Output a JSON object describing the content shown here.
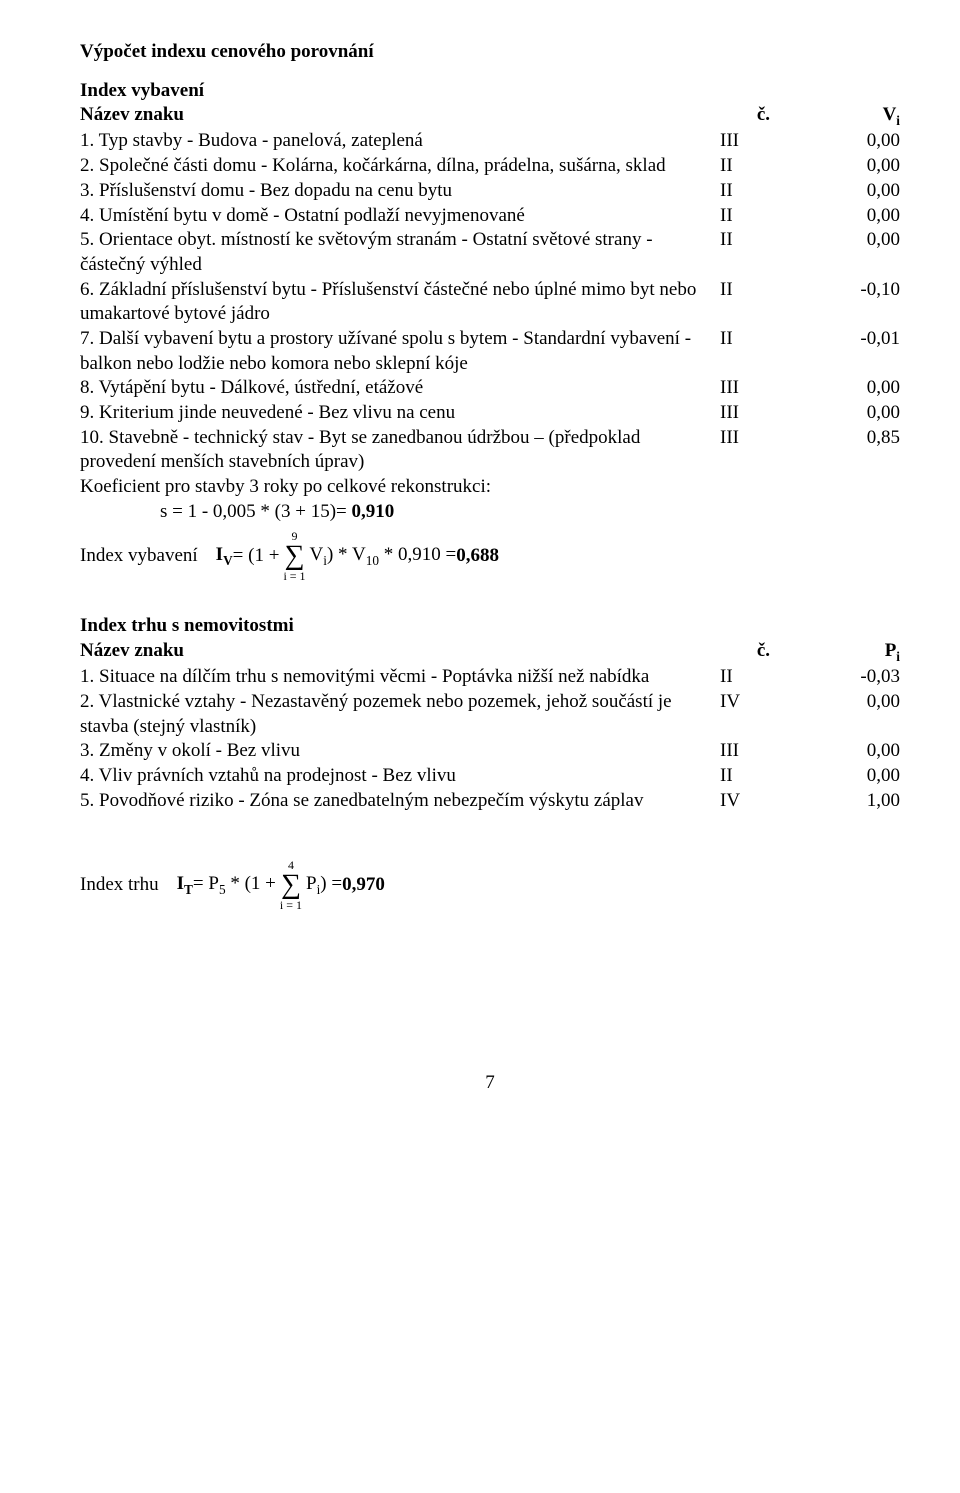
{
  "title": "Výpočet indexu cenového porovnání",
  "section1": {
    "heading": "Index vybavení",
    "header": {
      "name": "Název znaku",
      "c": "č.",
      "v_label": "V",
      "v_sub": "i"
    },
    "rows": [
      {
        "text": "1. Typ stavby - Budova - panelová, zateplená",
        "c": "III",
        "v": "0,00"
      },
      {
        "text": "2. Společné části domu - Kolárna, kočárkárna, dílna, prádelna, sušárna, sklad",
        "c": "II",
        "v": "0,00"
      },
      {
        "text": "3. Příslušenství domu - Bez dopadu na cenu bytu",
        "c": "II",
        "v": "0,00"
      },
      {
        "text": "4. Umístění bytu v domě - Ostatní podlaží nevyjmenované",
        "c": "II",
        "v": "0,00"
      },
      {
        "text": "5. Orientace obyt. místností ke světovým stranám - Ostatní světové strany - částečný výhled",
        "c": "II",
        "v": "0,00"
      },
      {
        "text": "6. Základní příslušenství bytu - Příslušenství částečné nebo úplné mimo byt nebo umakartové bytové jádro",
        "c": "II",
        "v": "-0,10"
      },
      {
        "text": "7. Další vybavení bytu a prostory užívané spolu s bytem - Standardní vybavení - balkon nebo lodžie nebo komora nebo sklepní kóje",
        "c": "II",
        "v": "-0,01"
      },
      {
        "text": "8. Vytápění bytu - Dálkové, ústřední, etážové",
        "c": "III",
        "v": "0,00"
      },
      {
        "text": "9. Kriterium jinde neuvedené - Bez vlivu na cenu",
        "c": "III",
        "v": "0,00"
      },
      {
        "text": "10. Stavebně - technický stav - Byt se zanedbanou údržbou – (předpoklad provedení menších stavebních úprav)",
        "c": "III",
        "v": "0,85"
      }
    ],
    "postline": "Koeficient pro stavby 3 roky po celkové rekonstrukci:",
    "sline_pre": "s = 1 - 0,005 * (3 + 15)= ",
    "sline_val": "0,910",
    "formula": {
      "lead": "Index vybavení",
      "pre": "I",
      "sub1": "V",
      "mid1": " = (1 + ",
      "sumtop": "9",
      "sumbot": "i = 1",
      "mid2": " V",
      "sub2": "i",
      "mid3": ") * V",
      "sub3": "10",
      "mid4": " * 0,910 = ",
      "val": "0,688"
    }
  },
  "section2": {
    "heading": "Index trhu s nemovitostmi",
    "header": {
      "name": "Název znaku",
      "c": "č.",
      "v_label": "P",
      "v_sub": "i"
    },
    "rows": [
      {
        "text": "1. Situace na dílčím trhu s nemovitými věcmi - Poptávka nižší než nabídka",
        "c": "II",
        "v": "-0,03"
      },
      {
        "text": "2. Vlastnické vztahy - Nezastavěný pozemek nebo pozemek, jehož součástí je stavba (stejný vlastník)",
        "c": "IV",
        "v": "0,00"
      },
      {
        "text": "3. Změny v okolí - Bez vlivu",
        "c": "III",
        "v": "0,00"
      },
      {
        "text": "4. Vliv právních vztahů na prodejnost - Bez vlivu",
        "c": "II",
        "v": "0,00"
      },
      {
        "text": "5. Povodňové riziko - Zóna se zanedbatelným nebezpečím výskytu záplav",
        "c": "IV",
        "v": "1,00"
      }
    ],
    "formula": {
      "lead": "Index trhu",
      "pre": "I",
      "sub1": "T",
      "mid1": " = P",
      "sub2": "5",
      "mid2": " * (1 + ",
      "sumtop": "4",
      "sumbot": "i = 1",
      "mid3": " P",
      "sub3": "i",
      "mid4": ") = ",
      "val": "0,970"
    }
  },
  "pagenum": "7"
}
